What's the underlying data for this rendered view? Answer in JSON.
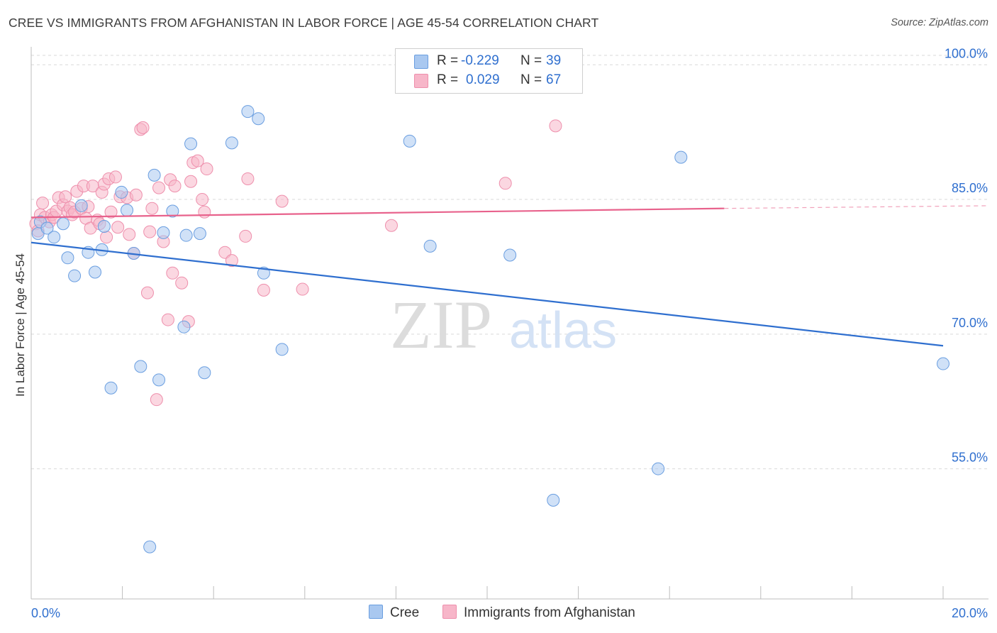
{
  "title": "CREE VS IMMIGRANTS FROM AFGHANISTAN IN LABOR FORCE | AGE 45-54 CORRELATION CHART",
  "source": "Source: ZipAtlas.com",
  "watermark": {
    "zip": "ZIP",
    "atlas": "atlas"
  },
  "legend": {
    "rows": [
      {
        "r_label": "R = ",
        "r_value": "-0.229",
        "n_label": "N = ",
        "n_value": "39"
      },
      {
        "r_label": "R = ",
        "r_value": "0.029",
        "n_label": "N = ",
        "n_value": "67"
      }
    ]
  },
  "bottom_legend": {
    "series1": "Cree",
    "series2": "Immigrants from Afghanistan"
  },
  "colors": {
    "cree_fill": "#a9c8f0",
    "cree_stroke": "#6a9ee0",
    "cree_line": "#2f6fcf",
    "afg_fill": "#f7b6c9",
    "afg_stroke": "#ee8fac",
    "afg_line": "#e8628c",
    "axis_label": "#2f6fcf",
    "grid": "#d9d9d9"
  },
  "chart_data": {
    "type": "scatter",
    "title": "CREE VS IMMIGRANTS FROM AFGHANISTAN IN LABOR FORCE | AGE 45-54 CORRELATION CHART",
    "xlabel": "",
    "ylabel": "In Labor Force | Age 45-54",
    "xlim": [
      0,
      20
    ],
    "ylim": [
      40.5,
      102
    ],
    "x_tick_labels": [
      "0.0%",
      "20.0%"
    ],
    "y_ticks": [
      55,
      70,
      85,
      100
    ],
    "y_tick_labels": [
      "55.0%",
      "70.0%",
      "85.0%",
      "100.0%"
    ],
    "grid": true,
    "legend_position": "top-center",
    "series": [
      {
        "name": "Cree",
        "r": -0.229,
        "n": 39,
        "trend": {
          "x": [
            0,
            20
          ],
          "y": [
            80.2,
            68.7
          ]
        },
        "points": [
          [
            0.15,
            81.2
          ],
          [
            0.2,
            82.5
          ],
          [
            0.35,
            81.8
          ],
          [
            0.5,
            80.8
          ],
          [
            0.7,
            82.3
          ],
          [
            0.8,
            78.5
          ],
          [
            0.95,
            76.5
          ],
          [
            1.1,
            84.3
          ],
          [
            1.25,
            79.1
          ],
          [
            1.4,
            76.9
          ],
          [
            1.55,
            79.4
          ],
          [
            1.6,
            82.0
          ],
          [
            1.75,
            64.0
          ],
          [
            1.98,
            85.8
          ],
          [
            2.1,
            83.8
          ],
          [
            2.25,
            79.0
          ],
          [
            2.4,
            66.4
          ],
          [
            2.6,
            46.3
          ],
          [
            2.7,
            87.7
          ],
          [
            2.8,
            64.9
          ],
          [
            2.9,
            81.3
          ],
          [
            3.1,
            83.7
          ],
          [
            3.35,
            70.8
          ],
          [
            3.4,
            81.0
          ],
          [
            3.5,
            91.2
          ],
          [
            3.7,
            81.2
          ],
          [
            3.8,
            65.7
          ],
          [
            4.4,
            91.3
          ],
          [
            4.75,
            94.8
          ],
          [
            4.98,
            94.0
          ],
          [
            5.1,
            76.8
          ],
          [
            5.5,
            68.3
          ],
          [
            8.3,
            91.5
          ],
          [
            8.75,
            79.8
          ],
          [
            10.5,
            78.8
          ],
          [
            11.45,
            51.5
          ],
          [
            13.75,
            55.0
          ],
          [
            14.25,
            89.7
          ],
          [
            20.0,
            66.7
          ]
        ]
      },
      {
        "name": "Immigrants from Afghanistan",
        "r": 0.029,
        "n": 67,
        "trend": {
          "x": [
            0,
            15.2
          ],
          "y": [
            83.0,
            84.0
          ]
        },
        "trend_dashed": {
          "x": [
            15.2,
            20
          ],
          "y": [
            84.0,
            84.3
          ]
        },
        "points": [
          [
            0.1,
            82.3
          ],
          [
            0.15,
            81.5
          ],
          [
            0.2,
            83.3
          ],
          [
            0.25,
            84.6
          ],
          [
            0.3,
            83.0
          ],
          [
            0.4,
            82.5
          ],
          [
            0.45,
            83.3
          ],
          [
            0.5,
            83.0
          ],
          [
            0.55,
            83.7
          ],
          [
            0.6,
            85.2
          ],
          [
            0.7,
            84.4
          ],
          [
            0.75,
            85.3
          ],
          [
            0.8,
            83.7
          ],
          [
            0.85,
            84.1
          ],
          [
            0.9,
            83.3
          ],
          [
            0.95,
            83.6
          ],
          [
            1.0,
            85.9
          ],
          [
            1.1,
            84.0
          ],
          [
            1.15,
            86.5
          ],
          [
            1.2,
            82.9
          ],
          [
            1.25,
            84.2
          ],
          [
            1.3,
            81.8
          ],
          [
            1.35,
            86.5
          ],
          [
            1.45,
            82.7
          ],
          [
            1.5,
            82.3
          ],
          [
            1.55,
            85.8
          ],
          [
            1.6,
            86.7
          ],
          [
            1.65,
            80.8
          ],
          [
            1.7,
            87.3
          ],
          [
            1.75,
            83.6
          ],
          [
            1.85,
            87.5
          ],
          [
            1.9,
            81.9
          ],
          [
            1.95,
            85.3
          ],
          [
            2.1,
            85.2
          ],
          [
            2.15,
            81.1
          ],
          [
            2.25,
            79.0
          ],
          [
            2.3,
            85.5
          ],
          [
            2.4,
            92.8
          ],
          [
            2.45,
            93.0
          ],
          [
            2.55,
            74.6
          ],
          [
            2.6,
            81.4
          ],
          [
            2.65,
            84.0
          ],
          [
            2.75,
            62.7
          ],
          [
            2.8,
            86.3
          ],
          [
            2.9,
            80.3
          ],
          [
            3.0,
            71.6
          ],
          [
            3.05,
            87.2
          ],
          [
            3.1,
            76.8
          ],
          [
            3.15,
            86.5
          ],
          [
            3.3,
            75.7
          ],
          [
            3.45,
            71.4
          ],
          [
            3.5,
            87.0
          ],
          [
            3.55,
            89.1
          ],
          [
            3.65,
            89.3
          ],
          [
            3.75,
            85.0
          ],
          [
            3.8,
            83.6
          ],
          [
            3.85,
            88.4
          ],
          [
            4.25,
            79.1
          ],
          [
            4.4,
            78.2
          ],
          [
            4.7,
            80.9
          ],
          [
            4.75,
            87.3
          ],
          [
            5.1,
            74.9
          ],
          [
            5.5,
            84.8
          ],
          [
            5.95,
            75.0
          ],
          [
            7.9,
            82.1
          ],
          [
            10.4,
            86.8
          ],
          [
            11.5,
            93.2
          ]
        ]
      }
    ]
  }
}
